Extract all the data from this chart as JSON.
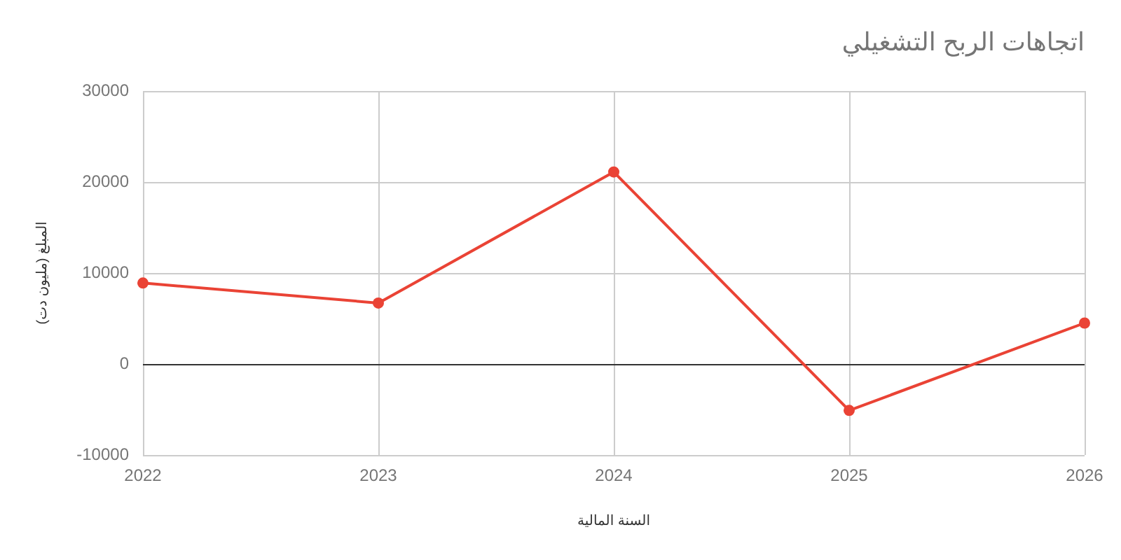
{
  "chart_data": {
    "type": "line",
    "title": "اتجاهات الربح التشغيلي",
    "xlabel": "السنة المالية",
    "ylabel": "المبلغ (مليون دت)",
    "x": [
      2022,
      2023,
      2024,
      2025,
      2026
    ],
    "series": [
      {
        "color": "#ea4335",
        "values": [
          8900,
          6700,
          21100,
          -5100,
          4500
        ]
      }
    ],
    "xlim": [
      2022,
      2026
    ],
    "xticks": [
      2022,
      2023,
      2024,
      2025,
      2026
    ],
    "ylim": [
      -10000,
      30000
    ],
    "yticks": [
      -10000,
      0,
      10000,
      20000,
      30000
    ],
    "grid": true,
    "marker": "circle",
    "line_style": "solid"
  }
}
